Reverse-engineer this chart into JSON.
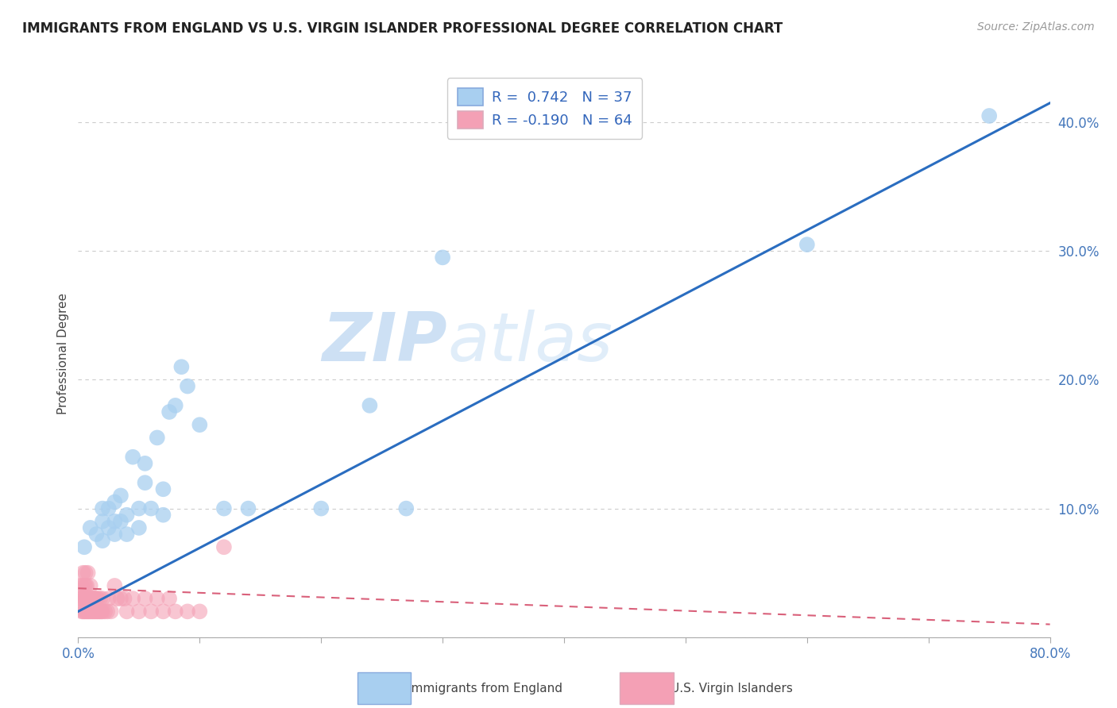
{
  "title": "IMMIGRANTS FROM ENGLAND VS U.S. VIRGIN ISLANDER PROFESSIONAL DEGREE CORRELATION CHART",
  "source": "Source: ZipAtlas.com",
  "ylabel": "Professional Degree",
  "xlim": [
    0.0,
    0.8
  ],
  "ylim": [
    0.0,
    0.44
  ],
  "xticks": [
    0.0,
    0.1,
    0.2,
    0.3,
    0.4,
    0.5,
    0.6,
    0.7,
    0.8
  ],
  "yticks": [
    0.0,
    0.1,
    0.2,
    0.3,
    0.4
  ],
  "blue_color": "#a8cff0",
  "pink_color": "#f4a0b5",
  "blue_line_color": "#2a6dc0",
  "pink_line_color": "#d9607a",
  "watermark_zip": "ZIP",
  "watermark_atlas": "atlas",
  "background_color": "#ffffff",
  "grid_color": "#cccccc",
  "blue_scatter_x": [
    0.005,
    0.01,
    0.015,
    0.02,
    0.02,
    0.02,
    0.025,
    0.025,
    0.03,
    0.03,
    0.03,
    0.035,
    0.035,
    0.04,
    0.04,
    0.045,
    0.05,
    0.05,
    0.055,
    0.055,
    0.06,
    0.065,
    0.07,
    0.07,
    0.075,
    0.08,
    0.085,
    0.09,
    0.1,
    0.12,
    0.14,
    0.2,
    0.24,
    0.27,
    0.3,
    0.6,
    0.75
  ],
  "blue_scatter_y": [
    0.07,
    0.085,
    0.08,
    0.075,
    0.09,
    0.1,
    0.085,
    0.1,
    0.08,
    0.09,
    0.105,
    0.09,
    0.11,
    0.08,
    0.095,
    0.14,
    0.085,
    0.1,
    0.12,
    0.135,
    0.1,
    0.155,
    0.095,
    0.115,
    0.175,
    0.18,
    0.21,
    0.195,
    0.165,
    0.1,
    0.1,
    0.1,
    0.18,
    0.1,
    0.295,
    0.305,
    0.405
  ],
  "pink_scatter_x": [
    0.002,
    0.002,
    0.003,
    0.003,
    0.003,
    0.004,
    0.004,
    0.004,
    0.005,
    0.005,
    0.005,
    0.006,
    0.006,
    0.006,
    0.006,
    0.007,
    0.007,
    0.007,
    0.008,
    0.008,
    0.008,
    0.009,
    0.009,
    0.01,
    0.01,
    0.01,
    0.011,
    0.011,
    0.012,
    0.012,
    0.013,
    0.013,
    0.014,
    0.014,
    0.015,
    0.015,
    0.016,
    0.016,
    0.017,
    0.018,
    0.018,
    0.019,
    0.02,
    0.02,
    0.022,
    0.024,
    0.025,
    0.027,
    0.03,
    0.032,
    0.035,
    0.038,
    0.04,
    0.045,
    0.05,
    0.055,
    0.06,
    0.065,
    0.07,
    0.075,
    0.08,
    0.09,
    0.1,
    0.12
  ],
  "pink_scatter_y": [
    0.03,
    0.04,
    0.02,
    0.03,
    0.04,
    0.02,
    0.03,
    0.05,
    0.02,
    0.03,
    0.04,
    0.02,
    0.03,
    0.04,
    0.05,
    0.02,
    0.03,
    0.04,
    0.02,
    0.03,
    0.05,
    0.02,
    0.03,
    0.02,
    0.03,
    0.04,
    0.02,
    0.03,
    0.02,
    0.03,
    0.02,
    0.03,
    0.02,
    0.03,
    0.02,
    0.03,
    0.02,
    0.03,
    0.02,
    0.02,
    0.03,
    0.02,
    0.02,
    0.03,
    0.02,
    0.02,
    0.03,
    0.02,
    0.04,
    0.03,
    0.03,
    0.03,
    0.02,
    0.03,
    0.02,
    0.03,
    0.02,
    0.03,
    0.02,
    0.03,
    0.02,
    0.02,
    0.02,
    0.07
  ],
  "blue_line_x": [
    0.0,
    0.8
  ],
  "blue_line_y": [
    0.02,
    0.415
  ],
  "pink_line_x": [
    0.0,
    0.8
  ],
  "pink_line_y": [
    0.038,
    0.01
  ]
}
